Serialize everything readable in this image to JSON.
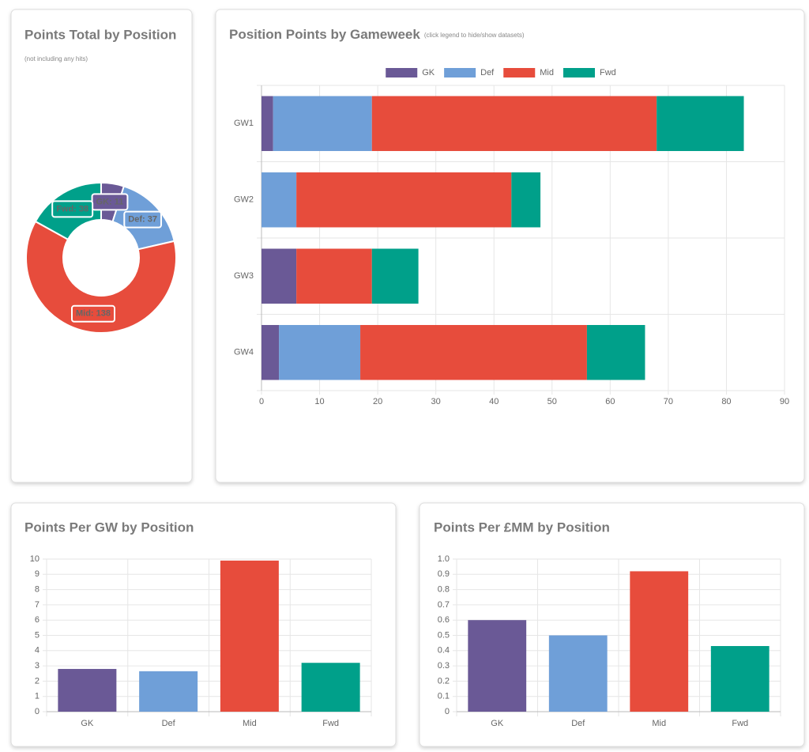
{
  "chart_data": [
    {
      "type": "doughnut",
      "title": "Points Total by Position",
      "subtitle": "(not including any hits)",
      "categories": [
        "GK",
        "Def",
        "Mid",
        "Fwd"
      ],
      "values": [
        11,
        37,
        138,
        38
      ],
      "value_labels": [
        "GK: 11",
        "Def: 37",
        "Mid: 138",
        "Fwd: 38"
      ],
      "colors": [
        "#6a5996",
        "#6f9fd8",
        "#e74c3c",
        "#00a08a"
      ]
    },
    {
      "type": "bar",
      "horizontal": true,
      "stacked": true,
      "title": "Position Points by Gameweek",
      "subtitle": "(click legend to hide/show datasets)",
      "categories": [
        "GW1",
        "GW2",
        "GW3",
        "GW4"
      ],
      "series": [
        {
          "name": "GK",
          "color": "#6a5996",
          "values": [
            2,
            0,
            6,
            3
          ]
        },
        {
          "name": "Def",
          "color": "#6f9fd8",
          "values": [
            17,
            6,
            0,
            14
          ]
        },
        {
          "name": "Mid",
          "color": "#e74c3c",
          "values": [
            49,
            37,
            13,
            39
          ]
        },
        {
          "name": "Fwd",
          "color": "#00a08a",
          "values": [
            15,
            5,
            8,
            10
          ]
        }
      ],
      "xlim": [
        0,
        90
      ],
      "xticks": [
        0,
        10,
        20,
        30,
        40,
        50,
        60,
        70,
        80,
        90
      ],
      "grid": true,
      "legend": "top"
    },
    {
      "type": "bar",
      "title": "Points Per GW by Position",
      "categories": [
        "GK",
        "Def",
        "Mid",
        "Fwd"
      ],
      "values": [
        2.8,
        2.65,
        9.9,
        3.2
      ],
      "colors": [
        "#6a5996",
        "#6f9fd8",
        "#e74c3c",
        "#00a08a"
      ],
      "ylim": [
        0,
        10
      ],
      "yticks": [
        0,
        1,
        2,
        3,
        4,
        5,
        6,
        7,
        8,
        9,
        10
      ],
      "grid": true
    },
    {
      "type": "bar",
      "title": "Points Per £MM by Position",
      "categories": [
        "GK",
        "Def",
        "Mid",
        "Fwd"
      ],
      "values": [
        0.6,
        0.5,
        0.92,
        0.43
      ],
      "colors": [
        "#6a5996",
        "#6f9fd8",
        "#e74c3c",
        "#00a08a"
      ],
      "ylim": [
        0,
        1
      ],
      "yticks": [
        0,
        0.1,
        0.2,
        0.3,
        0.4,
        0.5,
        0.6,
        0.7,
        0.8,
        0.9,
        {
          "value": 1,
          "label": "1.0"
        }
      ],
      "grid": true
    }
  ]
}
